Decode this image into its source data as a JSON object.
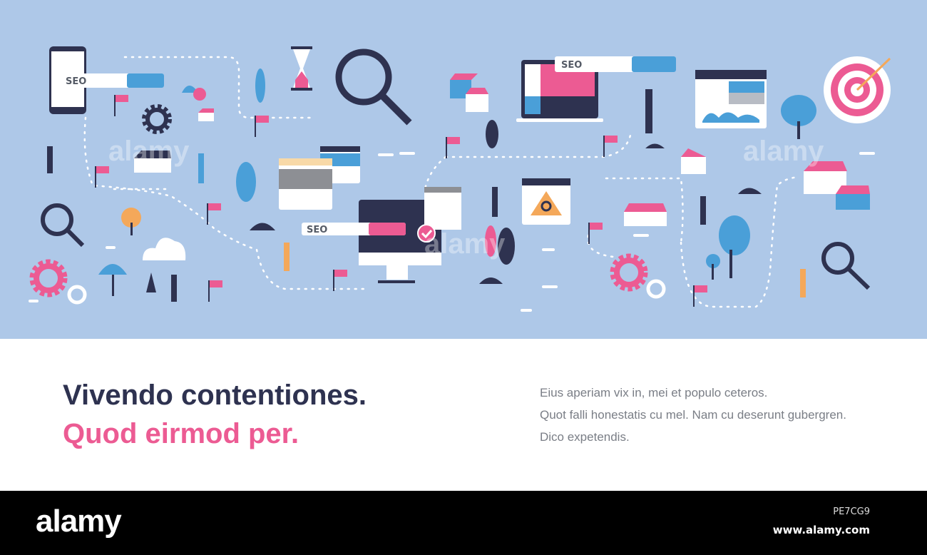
{
  "illustration": {
    "seo_labels": [
      "SEO",
      "SEO",
      "SEO"
    ],
    "watermark": "alamy",
    "colors": {
      "background": "#aec8e8",
      "navy": "#2e3250",
      "pink": "#ec5b93",
      "blue": "#4a9fd8",
      "orange": "#f4a85a"
    }
  },
  "headline": {
    "line1": "Vivendo contentiones.",
    "line2": "Quod eirmod per."
  },
  "body_text": [
    "Eius aperiam vix in, mei et populo ceteros.",
    "Quot falli honestatis cu mel. Nam cu deserunt gubergren.",
    "Dico expetendis."
  ],
  "footer": {
    "logo": "alamy",
    "image_id": "PE7CG9",
    "url": "www.alamy.com"
  }
}
